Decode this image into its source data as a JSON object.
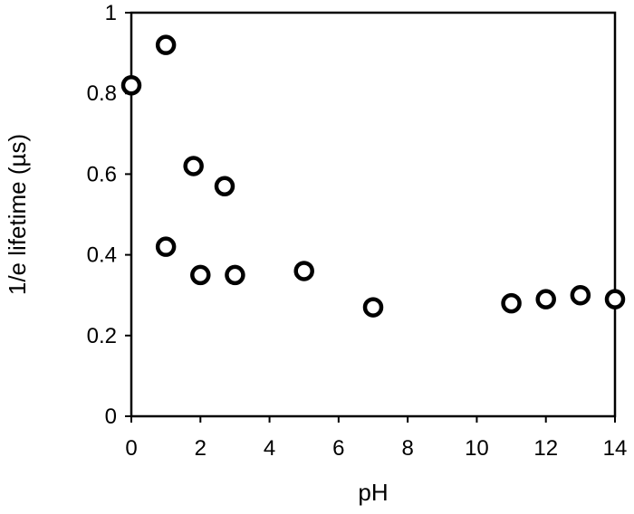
{
  "chart_data": {
    "type": "scatter",
    "xlabel": "pH",
    "ylabel": "1/e lifetime (µs)",
    "xlim": [
      0,
      14
    ],
    "ylim": [
      0,
      1
    ],
    "xticks": [
      "0",
      "2",
      "4",
      "6",
      "8",
      "10",
      "12",
      "14"
    ],
    "yticks": [
      "0",
      "0.2",
      "0.4",
      "0.6",
      "0.8",
      "1"
    ],
    "grid": false,
    "marker": "open-circle",
    "colors": {
      "marker_edge": "#000000",
      "marker_fill": "#ffffff",
      "axes": "#000000"
    },
    "points": [
      {
        "x": 0,
        "y": 0.82
      },
      {
        "x": 1,
        "y": 0.92
      },
      {
        "x": 1,
        "y": 0.42
      },
      {
        "x": 1.8,
        "y": 0.62
      },
      {
        "x": 2,
        "y": 0.35
      },
      {
        "x": 2.7,
        "y": 0.57
      },
      {
        "x": 3,
        "y": 0.35
      },
      {
        "x": 5,
        "y": 0.36
      },
      {
        "x": 7,
        "y": 0.27
      },
      {
        "x": 11,
        "y": 0.28
      },
      {
        "x": 12,
        "y": 0.29
      },
      {
        "x": 13,
        "y": 0.3
      },
      {
        "x": 14,
        "y": 0.29
      }
    ]
  }
}
